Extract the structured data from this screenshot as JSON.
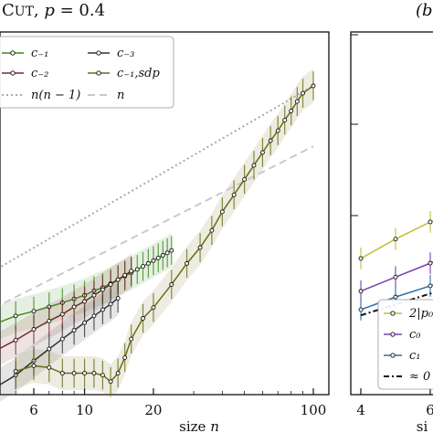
{
  "chart_data": [
    {
      "type": "line",
      "title": "Cut, p = 0.4",
      "xlabel": "size n",
      "ylabel": "",
      "x_scale": "log",
      "y_scale": "log",
      "xlim": [
        4,
        110
      ],
      "ylim": [
        0.05,
        40
      ],
      "x_ticks": [
        6,
        10,
        20,
        100
      ],
      "x_tick_labels": [
        "6",
        "10",
        "20",
        "100"
      ],
      "legend_position": "top-left",
      "series": [
        {
          "name": "c₋₁",
          "color": "#3a8a1e",
          "x": [
            4,
            5,
            6,
            7,
            8,
            9,
            10,
            11,
            12,
            13,
            14,
            15,
            16,
            17,
            18,
            19,
            20,
            21,
            22,
            23,
            24
          ],
          "y": [
            0.7,
            0.8,
            0.86,
            0.92,
            0.98,
            1.04,
            1.1,
            1.18,
            1.24,
            1.32,
            1.4,
            1.48,
            1.56,
            1.64,
            1.72,
            1.8,
            1.88,
            1.96,
            2.04,
            2.12,
            2.2
          ]
        },
        {
          "name": "c₋₂",
          "color": "#7a2a2a",
          "x": [
            4,
            5,
            6,
            7,
            8,
            9,
            10,
            11,
            12,
            13,
            14,
            15,
            16
          ],
          "y": [
            0.46,
            0.55,
            0.65,
            0.74,
            0.82,
            0.92,
            1.0,
            1.1,
            1.2,
            1.3,
            1.4,
            1.5,
            1.6
          ]
        },
        {
          "name": "c₋₃",
          "color": "#333333",
          "x": [
            4,
            5,
            6,
            7,
            8,
            9,
            10,
            11,
            12,
            13,
            14
          ],
          "y": [
            0.26,
            0.32,
            0.4,
            0.48,
            0.56,
            0.64,
            0.72,
            0.8,
            0.88,
            0.96,
            1.05
          ]
        },
        {
          "name": "c₋₁,sdp",
          "color": "#6b6b14",
          "x": [
            5,
            6,
            7,
            8,
            9,
            10,
            11,
            12,
            13,
            14,
            15,
            16,
            18,
            20,
            24,
            28,
            32,
            36,
            40,
            45,
            50,
            55,
            60,
            65,
            70,
            75,
            80,
            85,
            90,
            100
          ],
          "y": [
            0.34,
            0.37,
            0.36,
            0.33,
            0.33,
            0.33,
            0.33,
            0.32,
            0.29,
            0.33,
            0.42,
            0.56,
            0.77,
            0.91,
            1.3,
            1.8,
            2.3,
            3.0,
            4.0,
            5.2,
            6.6,
            8.2,
            10.0,
            12.0,
            14.0,
            16.5,
            19.0,
            22.0,
            25.0,
            28.0
          ]
        },
        {
          "name": "n(n − 1)",
          "color": "#aaaaaa",
          "x": [
            4,
            100
          ],
          "y": [
            1.6,
            28
          ]
        },
        {
          "name": "n",
          "color": "#c8c8d2",
          "x": [
            4,
            100
          ],
          "y": [
            0.9,
            11
          ]
        }
      ]
    },
    {
      "type": "line",
      "title": "(b",
      "xlabel": "si",
      "ylabel": "",
      "x_ticks": [
        4,
        6
      ],
      "x_tick_labels": [
        "4",
        "6"
      ],
      "legend_position": "bottom-right",
      "series": [
        {
          "name": "2|p₀",
          "color": "#bfbf3a",
          "x": [
            4,
            5,
            6,
            7,
            8,
            9
          ],
          "y": [
            1.3,
            1.8,
            2.4,
            3.0,
            3.8,
            4.6
          ]
        },
        {
          "name": "c₀",
          "color": "#7b3fb0",
          "x": [
            4,
            5,
            6,
            7,
            8,
            9
          ],
          "y": [
            0.75,
            0.95,
            1.2,
            1.55,
            2.0,
            2.6
          ]
        },
        {
          "name": "c₁",
          "color": "#2a6fb0",
          "x": [
            4,
            5,
            6,
            7,
            8
          ],
          "y": [
            0.55,
            0.68,
            0.82,
            1.0,
            1.2
          ]
        },
        {
          "name": "≈ 0",
          "color": "#111111",
          "x": [
            4,
            5,
            6,
            7,
            8
          ],
          "y": [
            0.5,
            0.6,
            0.72,
            0.86,
            1.02
          ]
        }
      ]
    }
  ]
}
